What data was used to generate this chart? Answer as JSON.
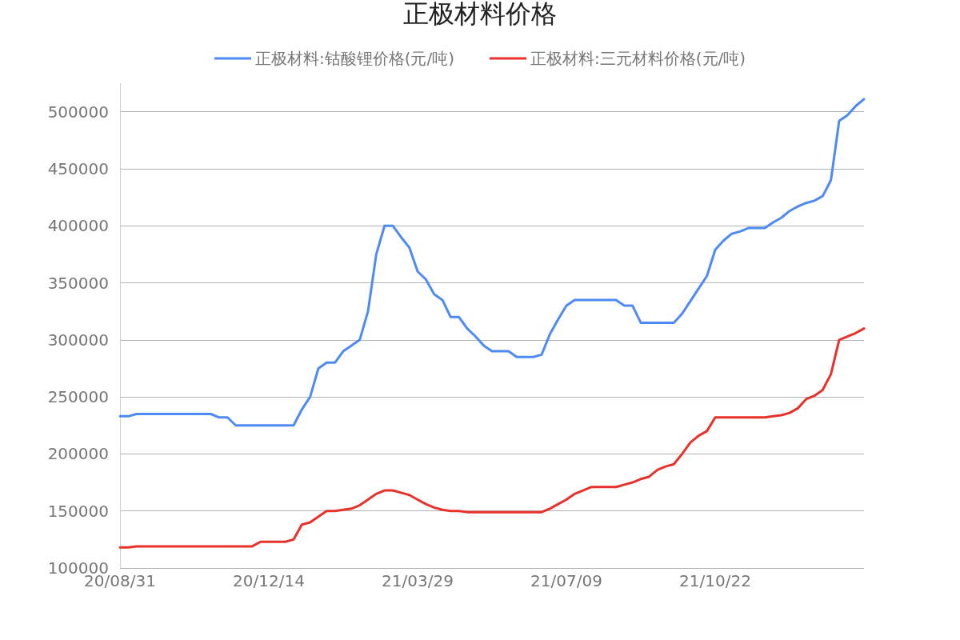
{
  "chart_data": {
    "type": "line",
    "title": "正极材料价格",
    "categories": [
      "20/08/31",
      null,
      null,
      null,
      null,
      null,
      null,
      null,
      null,
      null,
      null,
      null,
      null,
      null,
      null,
      null,
      null,
      null,
      "20/12/14",
      null,
      null,
      null,
      null,
      null,
      null,
      null,
      null,
      null,
      null,
      null,
      null,
      null,
      null,
      null,
      null,
      null,
      "21/03/29",
      null,
      null,
      null,
      null,
      null,
      null,
      null,
      null,
      null,
      null,
      null,
      null,
      null,
      null,
      null,
      null,
      null,
      "21/07/09",
      null,
      null,
      null,
      null,
      null,
      null,
      null,
      null,
      null,
      null,
      null,
      null,
      null,
      null,
      null,
      null,
      null,
      "21/10/22",
      null,
      null,
      null,
      null,
      null,
      null,
      null,
      null,
      null,
      null,
      null,
      null,
      null,
      null,
      null,
      null,
      null,
      null
    ],
    "series": [
      {
        "name": "正极材料:钴酸锂价格(元/吨)",
        "color": "#4e8af4",
        "values": [
          233000,
          233000,
          235000,
          235000,
          235000,
          235000,
          235000,
          235000,
          235000,
          235000,
          235000,
          235000,
          232000,
          232000,
          225000,
          225000,
          225000,
          225000,
          225000,
          225000,
          225000,
          225000,
          239000,
          250000,
          275000,
          280000,
          280000,
          290000,
          295000,
          300000,
          325000,
          375000,
          400000,
          400000,
          390000,
          381000,
          360000,
          353000,
          340000,
          335000,
          320000,
          320000,
          310000,
          303000,
          295000,
          290000,
          290000,
          290000,
          285000,
          285000,
          285000,
          287000,
          305000,
          318000,
          330000,
          335000,
          335000,
          335000,
          335000,
          335000,
          335000,
          330000,
          330000,
          315000,
          315000,
          315000,
          315000,
          315000,
          323000,
          334000,
          345000,
          356000,
          379000,
          387000,
          393000,
          395000,
          398000,
          398000,
          398000,
          403000,
          407000,
          413000,
          417000,
          420000,
          422000,
          426000,
          440000,
          492000,
          497000,
          505000,
          511000
        ]
      },
      {
        "name": "正极材料:三元材料价格(元/吨)",
        "color": "#e8312a",
        "values": [
          118000,
          118000,
          119000,
          119000,
          119000,
          119000,
          119000,
          119000,
          119000,
          119000,
          119000,
          119000,
          119000,
          119000,
          119000,
          119000,
          119000,
          123000,
          123000,
          123000,
          123000,
          125000,
          138000,
          140000,
          145000,
          150000,
          150000,
          151000,
          152000,
          155000,
          160000,
          165000,
          168000,
          168000,
          166000,
          164000,
          160000,
          156000,
          153000,
          151000,
          150000,
          150000,
          149000,
          149000,
          149000,
          149000,
          149000,
          149000,
          149000,
          149000,
          149000,
          149000,
          152000,
          156000,
          160000,
          165000,
          168000,
          171000,
          171000,
          171000,
          171000,
          173000,
          175000,
          178000,
          180000,
          186000,
          189000,
          191000,
          200000,
          210000,
          216000,
          220000,
          232000,
          232000,
          232000,
          232000,
          232000,
          232000,
          232000,
          233000,
          234000,
          236000,
          240000,
          248000,
          251000,
          256000,
          270000,
          300000,
          303000,
          306000,
          310000
        ]
      }
    ],
    "ylim": [
      100000,
      525000
    ],
    "yticks": [
      100000,
      150000,
      200000,
      250000,
      300000,
      350000,
      400000,
      450000,
      500000
    ],
    "grid": "y",
    "legend": "top",
    "marker": "none",
    "line_style": "solid"
  }
}
